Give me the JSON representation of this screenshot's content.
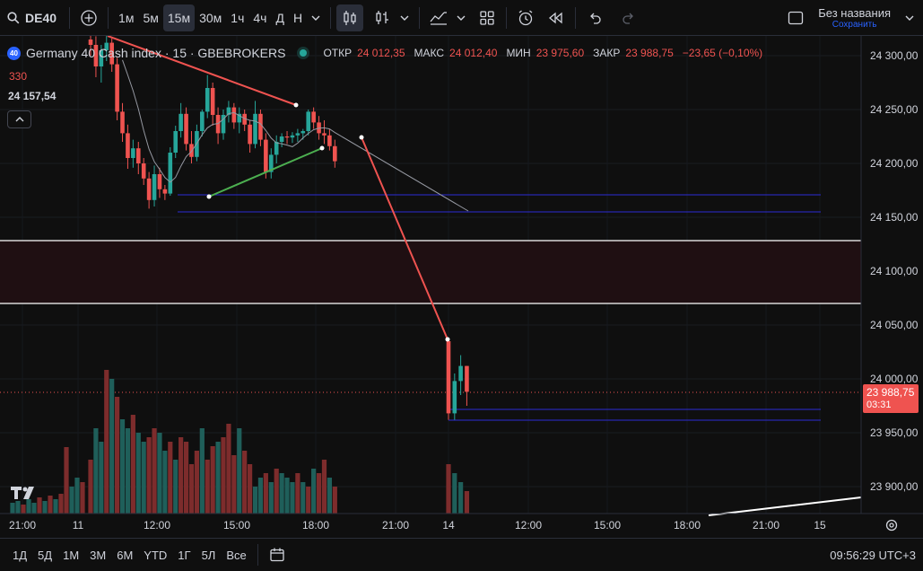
{
  "toolbar": {
    "symbol": "DE40",
    "timeframes": [
      "1м",
      "5м",
      "15м",
      "30м",
      "1ч",
      "4ч",
      "Д",
      "Н"
    ],
    "active_timeframe": "15м",
    "layout_title": "Без названия",
    "layout_status": "Сохранить"
  },
  "legend": {
    "badge": "40",
    "title": "Germany 40 Cash index · 15 · GBEBROKERS",
    "open_label": "ОТКР",
    "open": "24 012,35",
    "high_label": "МАКС",
    "high": "24 012,40",
    "low_label": "МИН",
    "low": "23 975,60",
    "close_label": "ЗАКР",
    "close": "23 988,75",
    "change": "−23,65 (−0,10%)",
    "indicator_value": "330",
    "price_value": "24 157,54"
  },
  "price_tag": {
    "price": "23 988,75",
    "countdown": "03:31"
  },
  "colors": {
    "up": "#26a69a",
    "down": "#ef5350",
    "volume_up": "#1f5f5a",
    "volume_down": "#7d2c2c",
    "hline": "#2b2bd6",
    "zone": "#1f0f12"
  },
  "bottom": {
    "ranges": [
      "1Д",
      "5Д",
      "1М",
      "3М",
      "6М",
      "YTD",
      "1Г",
      "5Л",
      "Все"
    ],
    "clock": "09:56:29 UTC+3"
  },
  "chart_data": {
    "type": "candlestick",
    "symbol": "DE40",
    "y_ticks": [
      "24 300,00",
      "24 250,00",
      "24 200,00",
      "24 150,00",
      "24 100,00",
      "24 050,00",
      "24 000,00",
      "23 950,00",
      "23 900,00"
    ],
    "x_ticks": [
      "21:00",
      "11",
      "12:00",
      "15:00",
      "18:00",
      "21:00",
      "14",
      "12:00",
      "15:00",
      "18:00",
      "21:00",
      "15"
    ],
    "ylim": [
      23870,
      24320
    ],
    "candles": [
      [
        24315,
        24322,
        24300,
        24310
      ],
      [
        24310,
        24318,
        24280,
        24290
      ],
      [
        24290,
        24310,
        24275,
        24305
      ],
      [
        24305,
        24320,
        24295,
        24312
      ],
      [
        24312,
        24316,
        24285,
        24292
      ],
      [
        24292,
        24298,
        24240,
        24248
      ],
      [
        24248,
        24256,
        24220,
        24228
      ],
      [
        24228,
        24236,
        24195,
        24205
      ],
      [
        24205,
        24222,
        24196,
        24214
      ],
      [
        24214,
        24220,
        24190,
        24200
      ],
      [
        24200,
        24205,
        24180,
        24186
      ],
      [
        24186,
        24192,
        24158,
        24166
      ],
      [
        24166,
        24198,
        24160,
        24190
      ],
      [
        24190,
        24196,
        24168,
        24176
      ],
      [
        24176,
        24180,
        24166,
        24172
      ],
      [
        24172,
        24215,
        24170,
        24210
      ],
      [
        24210,
        24235,
        24205,
        24230
      ],
      [
        24230,
        24256,
        24224,
        24246
      ],
      [
        24246,
        24252,
        24212,
        24218
      ],
      [
        24218,
        24230,
        24200,
        24206
      ],
      [
        24206,
        24236,
        24202,
        24230
      ],
      [
        24230,
        24250,
        24225,
        24248
      ],
      [
        24248,
        24282,
        24242,
        24270
      ],
      [
        24270,
        24275,
        24235,
        24245
      ],
      [
        24245,
        24252,
        24218,
        24228
      ],
      [
        24228,
        24250,
        24222,
        24245
      ],
      [
        24245,
        24258,
        24238,
        24252
      ],
      [
        24252,
        24256,
        24232,
        24238
      ],
      [
        24238,
        24252,
        24228,
        24246
      ],
      [
        24246,
        24250,
        24230,
        24236
      ],
      [
        24236,
        24240,
        24210,
        24218
      ],
      [
        24218,
        24258,
        24214,
        24246
      ],
      [
        24246,
        24250,
        24216,
        24222
      ],
      [
        24222,
        24228,
        24186,
        24192
      ],
      [
        24192,
        24214,
        24186,
        24208
      ],
      [
        24208,
        24226,
        24200,
        24220
      ],
      [
        24220,
        24228,
        24215,
        24225
      ],
      [
        24225,
        24230,
        24218,
        24224
      ],
      [
        24224,
        24229,
        24219,
        24226
      ],
      [
        24226,
        24232,
        24220,
        24228
      ],
      [
        24228,
        24232,
        24222,
        24230
      ],
      [
        24230,
        24250,
        24226,
        24248
      ],
      [
        24248,
        24252,
        24232,
        24238
      ],
      [
        24238,
        24244,
        24222,
        24228
      ],
      [
        24228,
        24240,
        24218,
        24226
      ],
      [
        24226,
        24232,
        24212,
        24216
      ],
      [
        24216,
        24222,
        24196,
        24202
      ],
      [
        24035,
        24038,
        23962,
        23968
      ],
      [
        23968,
        24005,
        23962,
        23998
      ],
      [
        23998,
        24022,
        23985,
        24012
      ],
      [
        24012,
        24012,
        23975,
        23988
      ]
    ],
    "volume": [
      [
        60,
        "d"
      ],
      [
        95,
        "u"
      ],
      [
        80,
        "u"
      ],
      [
        160,
        "d"
      ],
      [
        150,
        "u"
      ],
      [
        130,
        "d"
      ],
      [
        105,
        "u"
      ],
      [
        95,
        "u"
      ],
      [
        110,
        "d"
      ],
      [
        90,
        "u"
      ],
      [
        80,
        "u"
      ],
      [
        85,
        "d"
      ],
      [
        95,
        "d"
      ],
      [
        90,
        "u"
      ],
      [
        70,
        "u"
      ],
      [
        80,
        "d"
      ],
      [
        60,
        "u"
      ],
      [
        85,
        "d"
      ],
      [
        80,
        "d"
      ],
      [
        55,
        "d"
      ],
      [
        70,
        "d"
      ],
      [
        95,
        "u"
      ],
      [
        60,
        "d"
      ],
      [
        75,
        "d"
      ],
      [
        80,
        "u"
      ],
      [
        85,
        "d"
      ],
      [
        100,
        "d"
      ],
      [
        65,
        "d"
      ],
      [
        95,
        "u"
      ],
      [
        70,
        "d"
      ],
      [
        55,
        "d"
      ],
      [
        30,
        "u"
      ],
      [
        40,
        "u"
      ],
      [
        45,
        "d"
      ],
      [
        35,
        "u"
      ],
      [
        50,
        "d"
      ],
      [
        45,
        "u"
      ],
      [
        40,
        "u"
      ],
      [
        35,
        "u"
      ],
      [
        45,
        "d"
      ],
      [
        35,
        "u"
      ],
      [
        30,
        "d"
      ],
      [
        50,
        "u"
      ],
      [
        45,
        "d"
      ],
      [
        60,
        "d"
      ],
      [
        40,
        "u"
      ],
      [
        30,
        "d"
      ],
      [
        55,
        "d"
      ],
      [
        45,
        "u"
      ],
      [
        35,
        "u"
      ],
      [
        25,
        "d"
      ]
    ]
  }
}
